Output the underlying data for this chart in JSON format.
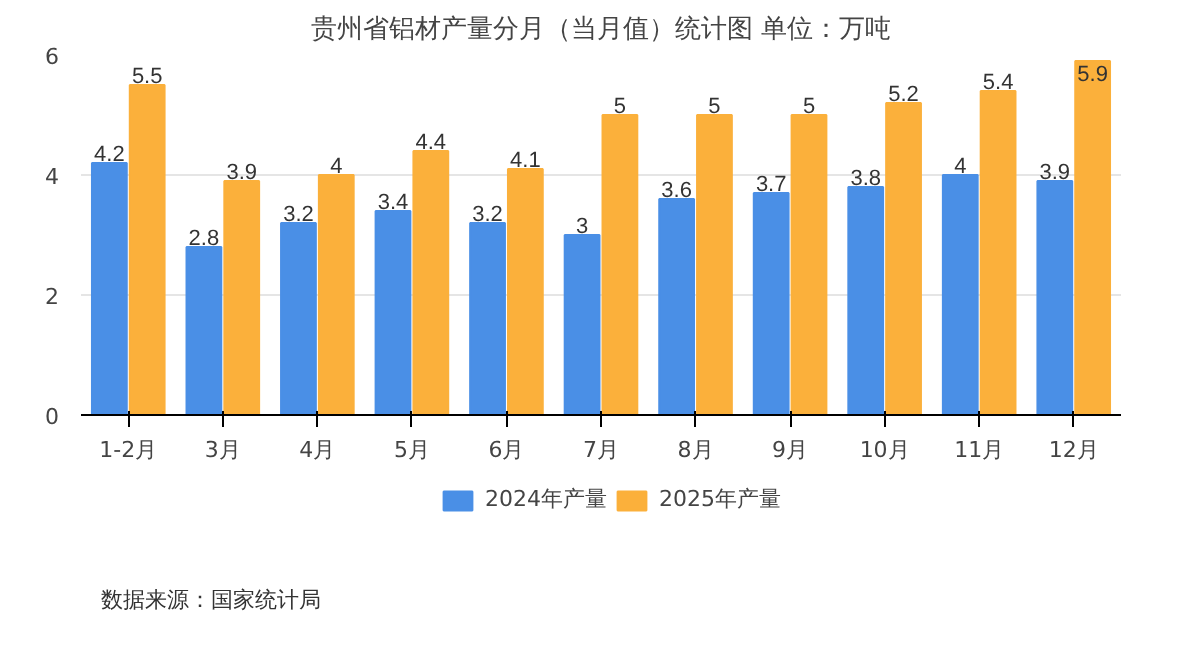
{
  "chart_data": {
    "type": "bar",
    "title": "贵州省铝材产量分月（当月值）统计图 单位：万吨",
    "categories": [
      "1-2月",
      "3月",
      "4月",
      "5月",
      "6月",
      "7月",
      "8月",
      "9月",
      "10月",
      "11月",
      "12月"
    ],
    "series": [
      {
        "name": "2024年产量",
        "color": "#4a8fe6",
        "values": [
          4.2,
          2.8,
          3.2,
          3.4,
          3.2,
          3,
          3.6,
          3.7,
          3.8,
          4,
          3.9
        ]
      },
      {
        "name": "2025年产量",
        "color": "#fbb03b",
        "values": [
          5.5,
          3.9,
          4,
          4.4,
          4.1,
          5,
          5,
          5,
          5.2,
          5.4,
          5.9
        ]
      }
    ],
    "ylim": [
      0,
      6
    ],
    "yticks": [
      0,
      2,
      4,
      6
    ],
    "grid": "y",
    "legend": "bottom",
    "data_labels": true,
    "annotations": [
      "数据来源：国家统计局"
    ]
  }
}
